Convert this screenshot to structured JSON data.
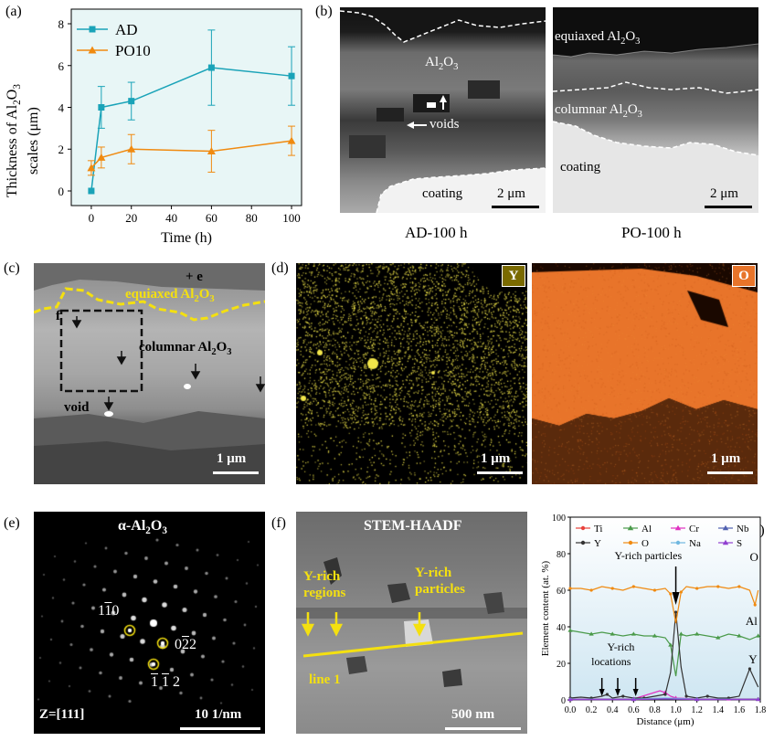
{
  "panel_labels": {
    "a": "(a)",
    "b": "(b)",
    "c": "(c)",
    "d": "(d)",
    "e": "(e)",
    "f": "(f)",
    "g": "(g)"
  },
  "colors": {
    "ad": "#1aa3b8",
    "po10": "#f08a10",
    "yellow": "#f4e010",
    "y_map": "#f2e64a",
    "o_map": "#e8742a"
  },
  "panel_a": {
    "ylabel_line1": "Thickness of Al",
    "ylabel_sub": "2",
    "ylabel_mid": "O",
    "ylabel_sub2": "3",
    "ylabel_line2": "scales (μm)",
    "xlabel": "Time (h)"
  },
  "panel_b": {
    "ad_al2o3": "Al",
    "voids": "voids",
    "coating_left": "coating",
    "scale_left": "2 μm",
    "equiaxed": "equiaxed Al",
    "columnar": "columnar Al",
    "coating_right": "coating",
    "scale_right": "2 μm",
    "caption_left": "AD-100 h",
    "caption_right": "PO-100 h"
  },
  "panel_c": {
    "e_mark": "+ e",
    "equiaxed": "equiaxed Al",
    "f_mark": "f",
    "columnar": "columnar Al",
    "void": "void",
    "scale": "1 μm"
  },
  "panel_d": {
    "y_badge": "Y",
    "o_badge": "O",
    "scale": "1 μm"
  },
  "panel_e": {
    "title": "α-Al",
    "spot1": "1",
    "spot1b": "1",
    "spot1c": "0",
    "spot2a": "0",
    "spot2b": "2",
    "spot2c": "2",
    "spot3a": "1",
    "spot3b": "1",
    "spot3c": "2",
    "zone": "Z=[111]",
    "scale": "10 1/nm"
  },
  "panel_f": {
    "title": "STEM-HAADF",
    "regions1": "Y-rich",
    "regions2": "regions",
    "particles1": "Y-rich",
    "particles2": "particles",
    "line": "line 1",
    "scale": "500 nm"
  },
  "panel_g": {
    "ann_particles": "Y-rich particles",
    "ann_locations1": "Y-rich",
    "ann_locations2": "locations",
    "lab_O": "O",
    "lab_Al": "Al",
    "lab_Y": "Y"
  },
  "chart_data": [
    {
      "type": "line",
      "panel": "a",
      "xlabel": "Time (h)",
      "ylabel": "Thickness of Al2O3 scales (μm)",
      "xlim": [
        -10,
        105
      ],
      "ylim": [
        -0.7,
        8.7
      ],
      "xticks": [
        0,
        20,
        40,
        60,
        80,
        100
      ],
      "yticks": [
        0,
        2,
        4,
        6,
        8
      ],
      "legend_position": "top-left",
      "series": [
        {
          "name": "AD",
          "color": "#1aa3b8",
          "marker": "square",
          "x": [
            0,
            5,
            20,
            60,
            100
          ],
          "y": [
            0,
            4.0,
            4.3,
            5.9,
            5.5
          ],
          "err": [
            0,
            1.0,
            0.9,
            1.8,
            1.4
          ]
        },
        {
          "name": "PO10",
          "color": "#f08a10",
          "marker": "triangle",
          "x": [
            0,
            5,
            20,
            60,
            100
          ],
          "y": [
            1.1,
            1.6,
            2.0,
            1.9,
            2.4
          ],
          "err": [
            0.35,
            0.5,
            0.7,
            1.0,
            0.7
          ]
        }
      ]
    },
    {
      "type": "line",
      "panel": "g",
      "xlabel": "Distance (μm)",
      "ylabel": "Element content (at. %)",
      "xlim": [
        0,
        1.8
      ],
      "ylim": [
        0,
        100
      ],
      "xticks": [
        0.0,
        0.2,
        0.4,
        0.6,
        0.8,
        1.0,
        1.2,
        1.4,
        1.6,
        1.8
      ],
      "yticks": [
        0,
        20,
        40,
        60,
        80,
        100
      ],
      "legend_position": "top",
      "series": [
        {
          "name": "Ti",
          "color": "#e8403a",
          "marker": "circle",
          "x": [
            0,
            0.3,
            0.6,
            0.9,
            1.2,
            1.5,
            1.78
          ],
          "y": [
            0.5,
            0.5,
            0.5,
            0.8,
            0.5,
            0.5,
            0.5
          ]
        },
        {
          "name": "Al",
          "color": "#4a9a4a",
          "marker": "triangle",
          "x": [
            0,
            0.1,
            0.2,
            0.3,
            0.4,
            0.5,
            0.6,
            0.7,
            0.8,
            0.9,
            0.95,
            1.0,
            1.05,
            1.1,
            1.2,
            1.3,
            1.4,
            1.5,
            1.6,
            1.7,
            1.78
          ],
          "y": [
            38,
            37,
            36,
            37,
            36,
            35,
            36,
            35,
            35,
            34,
            30,
            13,
            36,
            35,
            36,
            35,
            34,
            36,
            35,
            33,
            35
          ]
        },
        {
          "name": "Cr",
          "color": "#e030c0",
          "marker": "triangle",
          "x": [
            0,
            0.3,
            0.6,
            0.85,
            0.9,
            0.95,
            1.0,
            1.2,
            1.5,
            1.78
          ],
          "y": [
            0.5,
            0.5,
            0.5,
            5,
            4,
            2,
            1,
            0.5,
            0.5,
            0.5
          ]
        },
        {
          "name": "Nb",
          "color": "#5060b0",
          "marker": "triangle",
          "x": [
            0,
            0.3,
            0.6,
            0.9,
            1.2,
            1.5,
            1.78
          ],
          "y": [
            0.3,
            0.3,
            0.3,
            0.5,
            0.3,
            0.3,
            0.3
          ]
        },
        {
          "name": "Y",
          "color": "#333333",
          "marker": "circle",
          "x": [
            0,
            0.1,
            0.2,
            0.3,
            0.35,
            0.4,
            0.5,
            0.6,
            0.7,
            0.8,
            0.9,
            0.95,
            1.0,
            1.05,
            1.1,
            1.2,
            1.3,
            1.4,
            1.5,
            1.6,
            1.7,
            1.78
          ],
          "y": [
            1,
            1.5,
            1,
            2,
            3,
            1,
            2,
            1,
            1,
            2,
            3,
            15,
            48,
            18,
            2,
            1,
            2,
            1,
            1,
            2,
            17,
            7
          ]
        },
        {
          "name": "O",
          "color": "#f08a10",
          "marker": "circle",
          "x": [
            0,
            0.1,
            0.2,
            0.3,
            0.4,
            0.5,
            0.6,
            0.7,
            0.8,
            0.9,
            0.95,
            1.0,
            1.05,
            1.1,
            1.2,
            1.3,
            1.4,
            1.5,
            1.6,
            1.7,
            1.75,
            1.78
          ],
          "y": [
            61,
            61,
            60,
            62,
            61,
            60,
            62,
            61,
            60,
            61,
            58,
            42,
            59,
            62,
            61,
            62,
            62,
            61,
            62,
            60,
            52,
            60
          ]
        },
        {
          "name": "Na",
          "color": "#70b8e0",
          "marker": "circle",
          "x": [
            0,
            0.3,
            0.6,
            0.9,
            1.2,
            1.5,
            1.78
          ],
          "y": [
            0.4,
            0.4,
            0.4,
            1.0,
            0.4,
            0.4,
            0.4
          ]
        },
        {
          "name": "S",
          "color": "#9040d0",
          "marker": "triangle",
          "x": [
            0,
            0.3,
            0.6,
            0.9,
            1.2,
            1.5,
            1.78
          ],
          "y": [
            0.2,
            0.2,
            0.2,
            0.6,
            0.2,
            0.2,
            0.2
          ]
        }
      ]
    }
  ]
}
